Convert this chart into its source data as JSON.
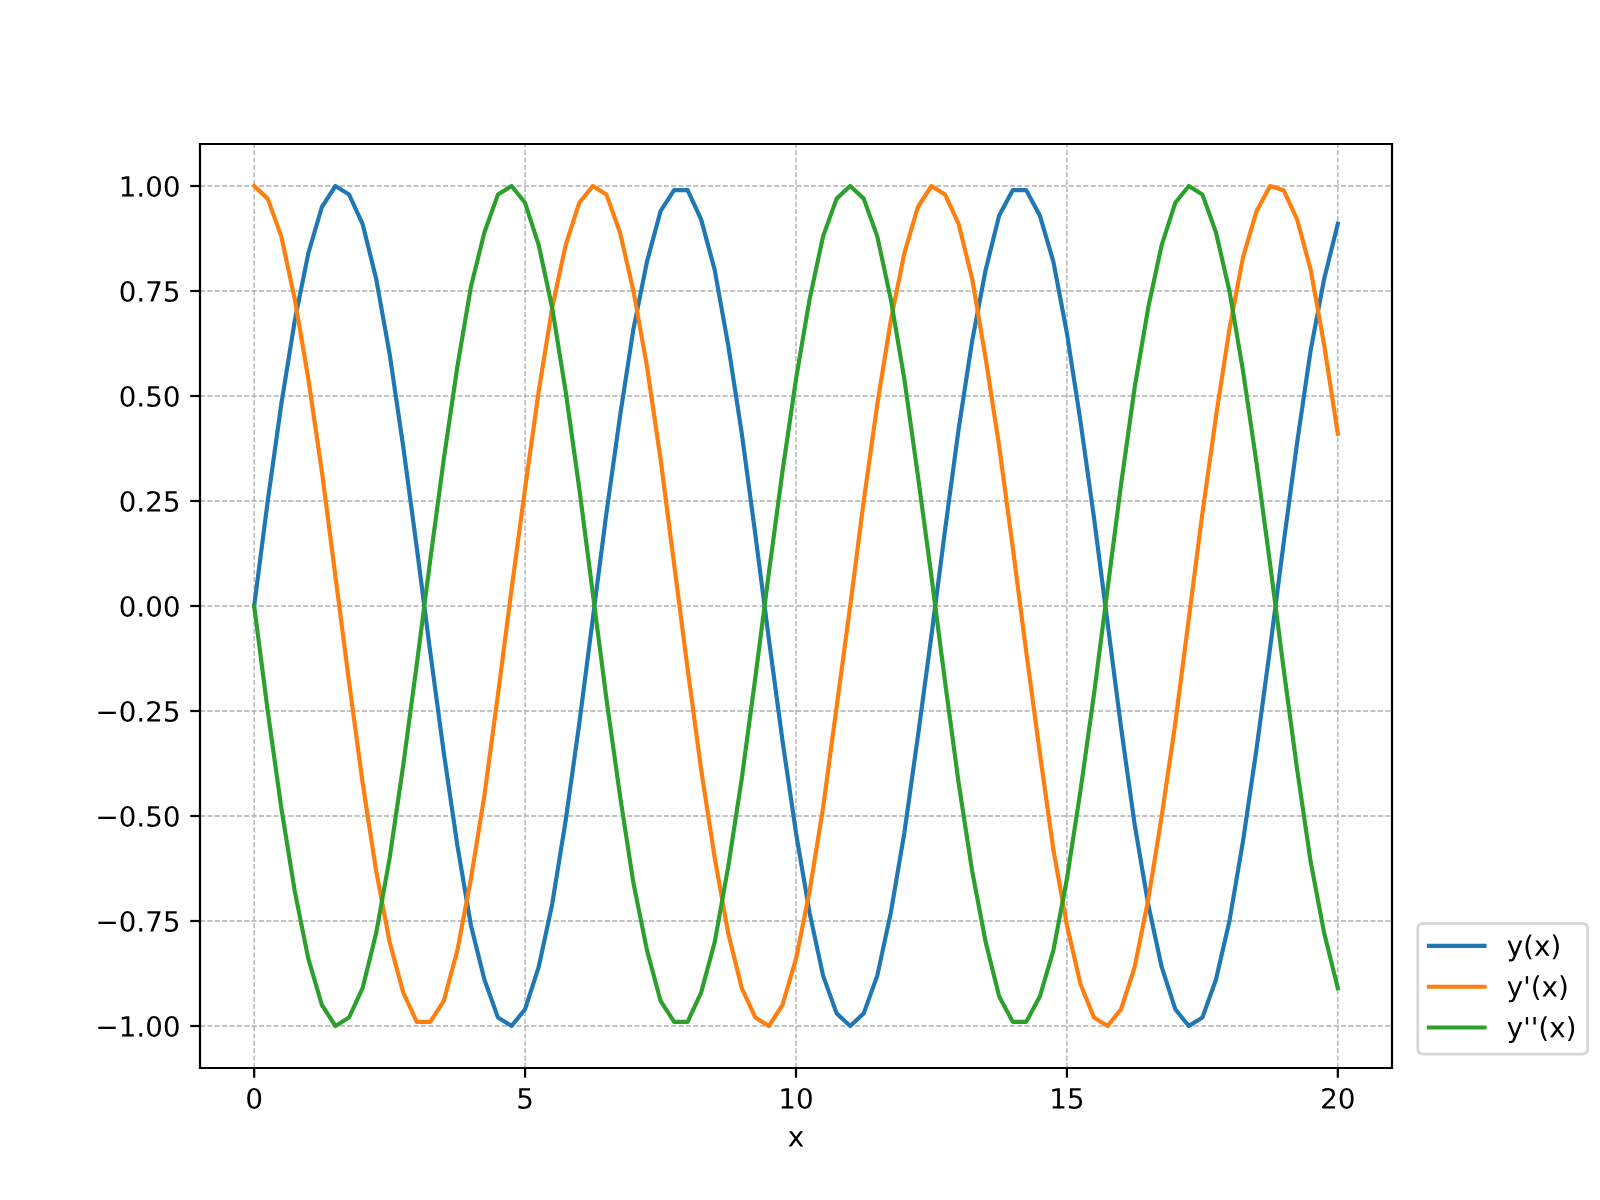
{
  "chart_data": {
    "type": "line",
    "xlabel": "x",
    "x": [
      0,
      0.25,
      0.5,
      0.75,
      1,
      1.25,
      1.5,
      1.75,
      2,
      2.25,
      2.5,
      2.75,
      3,
      3.25,
      3.5,
      3.75,
      4,
      4.25,
      4.5,
      4.75,
      5,
      5.25,
      5.5,
      5.75,
      6,
      6.25,
      6.5,
      6.75,
      7,
      7.25,
      7.5,
      7.75,
      8,
      8.25,
      8.5,
      8.75,
      9,
      9.25,
      9.5,
      9.75,
      10,
      10.25,
      10.5,
      10.75,
      11,
      11.25,
      11.5,
      11.75,
      12,
      12.25,
      12.5,
      12.75,
      13,
      13.25,
      13.5,
      13.75,
      14,
      14.25,
      14.5,
      14.75,
      15,
      15.25,
      15.5,
      15.75,
      16,
      16.25,
      16.5,
      16.75,
      17,
      17.25,
      17.5,
      17.75,
      18,
      18.25,
      18.5,
      18.75,
      19,
      19.25,
      19.5,
      19.75,
      20
    ],
    "series": [
      {
        "name": "y(x)",
        "color": "#1f77b4",
        "values": [
          0,
          0.25,
          0.48,
          0.68,
          0.84,
          0.95,
          1.0,
          0.98,
          0.91,
          0.78,
          0.6,
          0.38,
          0.14,
          -0.11,
          -0.35,
          -0.57,
          -0.76,
          -0.89,
          -0.98,
          -1.0,
          -0.96,
          -0.86,
          -0.71,
          -0.51,
          -0.28,
          -0.03,
          0.22,
          0.45,
          0.66,
          0.82,
          0.94,
          0.99,
          0.99,
          0.92,
          0.8,
          0.62,
          0.41,
          0.17,
          -0.08,
          -0.32,
          -0.54,
          -0.73,
          -0.88,
          -0.97,
          -1.0,
          -0.97,
          -0.88,
          -0.73,
          -0.54,
          -0.31,
          -0.07,
          0.18,
          0.42,
          0.63,
          0.8,
          0.93,
          0.99,
          0.99,
          0.93,
          0.82,
          0.65,
          0.44,
          0.21,
          -0.04,
          -0.29,
          -0.52,
          -0.71,
          -0.86,
          -0.96,
          -1.0,
          -0.98,
          -0.89,
          -0.75,
          -0.56,
          -0.34,
          -0.1,
          0.15,
          0.39,
          0.61,
          0.78,
          0.91
        ]
      },
      {
        "name": "y'(x)",
        "color": "#ff7f0e",
        "values": [
          1.0,
          0.97,
          0.88,
          0.73,
          0.54,
          0.32,
          0.07,
          -0.18,
          -0.42,
          -0.63,
          -0.8,
          -0.92,
          -0.99,
          -0.99,
          -0.94,
          -0.82,
          -0.65,
          -0.45,
          -0.21,
          0.04,
          0.28,
          0.51,
          0.71,
          0.86,
          0.96,
          1.0,
          0.98,
          0.89,
          0.75,
          0.57,
          0.35,
          0.1,
          -0.15,
          -0.39,
          -0.6,
          -0.78,
          -0.91,
          -0.98,
          -1.0,
          -0.95,
          -0.84,
          -0.68,
          -0.48,
          -0.24,
          0.0,
          0.25,
          0.48,
          0.68,
          0.84,
          0.95,
          1.0,
          0.98,
          0.91,
          0.78,
          0.59,
          0.38,
          0.14,
          -0.11,
          -0.35,
          -0.58,
          -0.76,
          -0.9,
          -0.98,
          -1.0,
          -0.96,
          -0.86,
          -0.7,
          -0.5,
          -0.28,
          -0.03,
          0.22,
          0.45,
          0.66,
          0.83,
          0.94,
          1.0,
          0.99,
          0.92,
          0.8,
          0.62,
          0.41
        ]
      },
      {
        "name": "y''(x)",
        "color": "#2ca02c",
        "values": [
          0,
          -0.25,
          -0.48,
          -0.68,
          -0.84,
          -0.95,
          -1.0,
          -0.98,
          -0.91,
          -0.78,
          -0.6,
          -0.38,
          -0.14,
          0.11,
          0.35,
          0.57,
          0.76,
          0.89,
          0.98,
          1.0,
          0.96,
          0.86,
          0.71,
          0.51,
          0.28,
          0.03,
          -0.22,
          -0.45,
          -0.66,
          -0.82,
          -0.94,
          -0.99,
          -0.99,
          -0.92,
          -0.8,
          -0.62,
          -0.41,
          -0.17,
          0.08,
          0.32,
          0.54,
          0.73,
          0.88,
          0.97,
          1.0,
          0.97,
          0.88,
          0.73,
          0.54,
          0.31,
          0.07,
          -0.18,
          -0.42,
          -0.63,
          -0.8,
          -0.93,
          -0.99,
          -0.99,
          -0.93,
          -0.82,
          -0.65,
          -0.44,
          -0.21,
          0.04,
          0.29,
          0.52,
          0.71,
          0.86,
          0.96,
          1.0,
          0.98,
          0.89,
          0.75,
          0.56,
          0.34,
          0.1,
          -0.15,
          -0.39,
          -0.61,
          -0.78,
          -0.91
        ]
      }
    ],
    "xlim": [
      -1,
      21
    ],
    "xticks": [
      0,
      5,
      10,
      15,
      20
    ],
    "ylim": [
      -1.1,
      1.1
    ],
    "yticks": [
      {
        "value": -1,
        "label": "−1.00"
      },
      {
        "value": -0.75,
        "label": "−0.75"
      },
      {
        "value": -0.5,
        "label": "−0.50"
      },
      {
        "value": -0.25,
        "label": "−0.25"
      },
      {
        "value": 0,
        "label": "0.00"
      },
      {
        "value": 0.25,
        "label": "0.25"
      },
      {
        "value": 0.5,
        "label": "0.50"
      },
      {
        "value": 0.75,
        "label": "0.75"
      },
      {
        "value": 1,
        "label": "1.00"
      }
    ],
    "grid": true,
    "legend": "bottom right",
    "marker": "none",
    "line_style": "solid"
  }
}
